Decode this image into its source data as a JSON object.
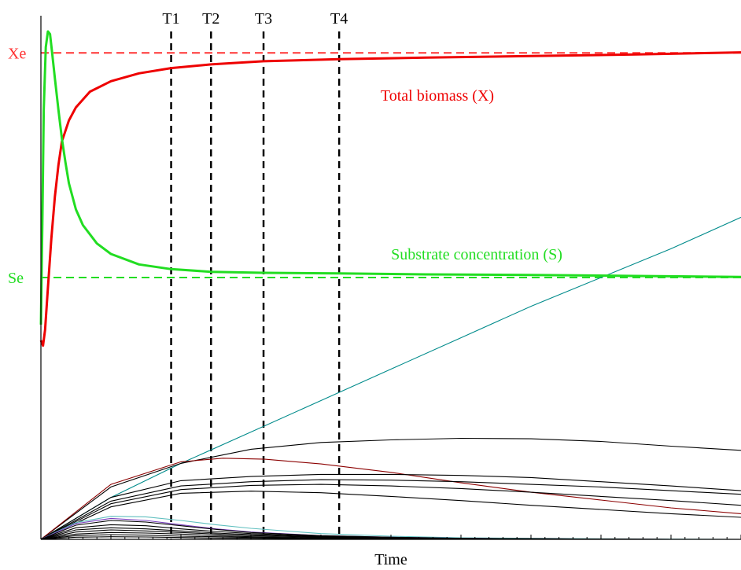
{
  "chart_data": {
    "type": "line",
    "title": "",
    "xlabel": "Time",
    "ylabel": "",
    "xlim": [
      0,
      100
    ],
    "ylim": [
      0,
      100
    ],
    "grid": false,
    "legend": "none",
    "time_markers": [
      {
        "label": "T1",
        "x": 18.6
      },
      {
        "label": "T2",
        "x": 24.3
      },
      {
        "label": "T3",
        "x": 31.8
      },
      {
        "label": "T4",
        "x": 42.6
      }
    ],
    "reference_lines": [
      {
        "label": "Xe",
        "y": 92.9,
        "color": "#ff3333"
      },
      {
        "label": "Se",
        "y": 50.0,
        "color": "#22dd22"
      }
    ],
    "main_series": [
      {
        "name": "Total biomass (X)",
        "color": "#ee0000",
        "x": [
          0.0,
          0.3,
          0.6,
          1.0,
          1.5,
          2.0,
          2.5,
          3.0,
          4.0,
          5.0,
          7.0,
          10.0,
          14.0,
          18.6,
          24.3,
          31.8,
          42.6,
          55.0,
          70.0,
          85.0,
          100.0
        ],
        "y": [
          38.0,
          37.0,
          40.0,
          48.0,
          57.5,
          65.5,
          71.5,
          76.0,
          80.0,
          82.5,
          85.5,
          87.5,
          89.0,
          90.0,
          90.7,
          91.3,
          91.7,
          92.0,
          92.3,
          92.6,
          93.0
        ]
      },
      {
        "name": "Substrate concentration (S)",
        "color": "#22dd22",
        "x": [
          0.0,
          0.2,
          0.4,
          0.7,
          1.0,
          1.3,
          1.6,
          2.0,
          2.5,
          3.0,
          3.5,
          4.0,
          5.0,
          6.0,
          8.0,
          10.0,
          14.0,
          18.6,
          24.3,
          31.8,
          42.6,
          55.0,
          70.0,
          85.0,
          100.0
        ],
        "y": [
          41.0,
          60.0,
          82.0,
          94.0,
          97.0,
          96.5,
          93.0,
          88.0,
          82.0,
          76.5,
          72.0,
          68.0,
          63.0,
          60.0,
          56.5,
          54.5,
          52.5,
          51.6,
          51.1,
          50.9,
          50.8,
          50.6,
          50.5,
          50.3,
          50.1
        ]
      }
    ],
    "species_series": [
      {
        "color": "#008b8b",
        "x": [
          0,
          10,
          20,
          30,
          40,
          50,
          60,
          70,
          80,
          90,
          100
        ],
        "y": [
          0,
          8,
          14.5,
          20.5,
          26.5,
          32.5,
          38.5,
          44.5,
          50.0,
          55.5,
          61.5
        ]
      },
      {
        "color": "#000000",
        "x": [
          0,
          10,
          20,
          30,
          40,
          50,
          60,
          70,
          80,
          90,
          100
        ],
        "y": [
          0,
          10,
          14.5,
          17.2,
          18.5,
          19.0,
          19.3,
          19.2,
          18.7,
          17.8,
          17.0
        ]
      },
      {
        "color": "#8b0000",
        "x": [
          0,
          10,
          20,
          26,
          32,
          40,
          50,
          60,
          70,
          80,
          90,
          100
        ],
        "y": [
          0,
          10.5,
          14.8,
          15.5,
          15.3,
          14.4,
          12.8,
          10.8,
          9.0,
          7.5,
          6.0,
          4.9
        ]
      },
      {
        "color": "#000000",
        "x": [
          0,
          10,
          20,
          30,
          40,
          50,
          60,
          70,
          80,
          90,
          100
        ],
        "y": [
          0,
          8,
          11.2,
          12.0,
          12.4,
          12.4,
          12.2,
          11.8,
          11.0,
          10.2,
          9.3
        ]
      },
      {
        "color": "#000000",
        "x": [
          0,
          10,
          20,
          30,
          40,
          50,
          60,
          70,
          80,
          90,
          100
        ],
        "y": [
          0,
          7.3,
          10.2,
          11.0,
          11.4,
          11.3,
          11.0,
          10.5,
          10.0,
          9.3,
          8.6
        ]
      },
      {
        "color": "#000000",
        "x": [
          0,
          10,
          20,
          30,
          40,
          50,
          60,
          70,
          80,
          90,
          100
        ],
        "y": [
          0,
          6.8,
          9.5,
          10.3,
          10.5,
          10.2,
          9.7,
          9.0,
          8.2,
          7.4,
          6.5
        ]
      },
      {
        "color": "#000000",
        "x": [
          0,
          10,
          20,
          30,
          40,
          50,
          60,
          70,
          80,
          90,
          100
        ],
        "y": [
          0,
          6.2,
          8.8,
          9.2,
          8.9,
          8.2,
          7.4,
          6.5,
          5.7,
          4.9,
          4.2
        ]
      },
      {
        "color": "#5fbfbf",
        "x": [
          0,
          5,
          10,
          15,
          20,
          25,
          30,
          40,
          50,
          60,
          70,
          80,
          90,
          100
        ],
        "y": [
          0,
          3.2,
          4.4,
          4.3,
          3.6,
          2.8,
          2.1,
          1.1,
          0.6,
          0.3,
          0.2,
          0.1,
          0.05,
          0.0
        ]
      },
      {
        "color": "#7a3fbf",
        "x": [
          0,
          5,
          10,
          15,
          20,
          25,
          30,
          40,
          50,
          60,
          70,
          80,
          90,
          100
        ],
        "y": [
          0,
          3.0,
          4.0,
          3.6,
          2.8,
          2.0,
          1.4,
          0.7,
          0.4,
          0.2,
          0.1,
          0.05,
          0.0,
          0.0
        ]
      },
      {
        "color": "#000000",
        "x": [
          0,
          5,
          10,
          15,
          20,
          25,
          30,
          40,
          50,
          60,
          70,
          80,
          90,
          100
        ],
        "y": [
          0,
          2.7,
          3.6,
          3.3,
          2.6,
          1.9,
          1.3,
          0.7,
          0.4,
          0.2,
          0.1,
          0.05,
          0.0,
          0.0
        ]
      },
      {
        "color": "#000000",
        "x": [
          0,
          5,
          10,
          15,
          20,
          25,
          30,
          40,
          50,
          60,
          70,
          80,
          90,
          100
        ],
        "y": [
          0,
          2.2,
          2.8,
          2.6,
          2.0,
          1.5,
          1.1,
          0.6,
          0.3,
          0.15,
          0.1,
          0.05,
          0.0,
          0.0
        ]
      },
      {
        "color": "#000000",
        "x": [
          0,
          5,
          10,
          15,
          20,
          25,
          30,
          40,
          50,
          60,
          70,
          80,
          90,
          100
        ],
        "y": [
          0,
          1.8,
          2.2,
          2.0,
          1.6,
          1.2,
          0.9,
          0.5,
          0.3,
          0.15,
          0.1,
          0.05,
          0.0,
          0.0
        ]
      },
      {
        "color": "#000000",
        "x": [
          0,
          5,
          10,
          15,
          20,
          25,
          30,
          40,
          50,
          60,
          70,
          80,
          90,
          100
        ],
        "y": [
          0,
          1.4,
          1.8,
          1.6,
          1.3,
          1.0,
          0.7,
          0.4,
          0.2,
          0.1,
          0.05,
          0.0,
          0.0,
          0.0
        ]
      },
      {
        "color": "#000000",
        "x": [
          0,
          5,
          10,
          15,
          20,
          25,
          30,
          40,
          50,
          60,
          70,
          80,
          90,
          100
        ],
        "y": [
          0,
          1.0,
          1.3,
          1.2,
          1.0,
          0.7,
          0.5,
          0.3,
          0.15,
          0.1,
          0.05,
          0.0,
          0.0,
          0.0
        ]
      },
      {
        "color": "#000000",
        "x": [
          0,
          5,
          10,
          15,
          20,
          25,
          30,
          40,
          50,
          60,
          70,
          80,
          90,
          100
        ],
        "y": [
          0,
          0.7,
          0.9,
          0.8,
          0.6,
          0.5,
          0.35,
          0.2,
          0.1,
          0.05,
          0.0,
          0.0,
          0.0,
          0.0
        ]
      },
      {
        "color": "#000000",
        "x": [
          0,
          5,
          10,
          15,
          20,
          25,
          30,
          40,
          50,
          60,
          70,
          80,
          90,
          100
        ],
        "y": [
          0,
          0.4,
          0.5,
          0.45,
          0.35,
          0.25,
          0.2,
          0.1,
          0.05,
          0.0,
          0.0,
          0.0,
          0.0,
          0.0
        ]
      }
    ],
    "annotations": [
      {
        "text": "Total biomass (X)",
        "color": "#ee0000",
        "anchor": "Total biomass (X)"
      },
      {
        "text": "Substrate concentration (S)",
        "color": "#22dd22",
        "anchor": "Substrate concentration (S)"
      }
    ]
  }
}
